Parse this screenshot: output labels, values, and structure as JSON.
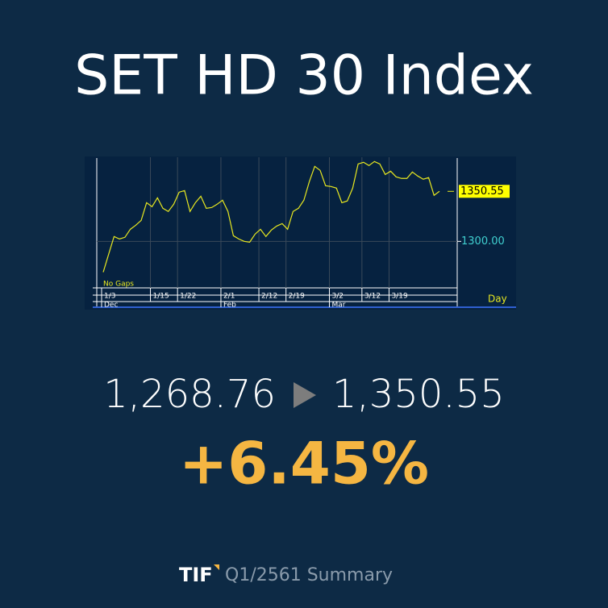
{
  "chart_data": {
    "type": "line",
    "title": "SET HD 30 Index",
    "categories": [
      "1/3",
      null,
      null,
      null,
      null,
      null,
      null,
      null,
      null,
      "1/15",
      null,
      null,
      null,
      null,
      "1/22",
      null,
      null,
      null,
      null,
      null,
      null,
      null,
      "2/1",
      null,
      null,
      null,
      null,
      null,
      null,
      "2/12",
      null,
      null,
      null,
      null,
      "2/19",
      null,
      null,
      null,
      null,
      null,
      null,
      null,
      "3/2",
      null,
      null,
      null,
      null,
      null,
      "3/12",
      null,
      null,
      null,
      null,
      "3/19",
      null,
      null,
      null,
      null,
      null,
      null,
      null,
      null,
      null
    ],
    "months": [
      "Dec",
      null,
      null,
      null,
      null,
      null,
      null,
      null,
      null,
      null,
      null,
      null,
      null,
      null,
      null,
      null,
      null,
      null,
      null,
      null,
      null,
      null,
      "Feb",
      null,
      null,
      null,
      null,
      null,
      null,
      null,
      null,
      null,
      null,
      null,
      null,
      null,
      null,
      null,
      null,
      null,
      null,
      null,
      "Mar",
      null,
      null,
      null,
      null,
      null,
      null,
      null,
      null,
      null,
      null,
      null,
      null,
      null,
      null,
      null,
      null,
      null,
      null,
      null,
      null
    ],
    "series": [
      {
        "color": "#e8e820",
        "values": [
          1268.8,
          1287.0,
          1304.9,
          1302.4,
          1304.1,
          1312.2,
          1316.3,
          1321.2,
          1339.1,
          1335.0,
          1344.0,
          1333.4,
          1330.2,
          1337.5,
          1349.7,
          1351.3,
          1330.2,
          1339.1,
          1345.6,
          1333.4,
          1334.2,
          1337.5,
          1341.6,
          1330.2,
          1305.7,
          1302.4,
          1300.0,
          1299.2,
          1307.3,
          1312.2,
          1304.9,
          1311.4,
          1315.5,
          1317.9,
          1312.2,
          1330.2,
          1333.4,
          1341.6,
          1360.3,
          1375.8,
          1371.7,
          1356.2,
          1355.4,
          1353.8,
          1339.1,
          1340.8,
          1353.8,
          1378.2,
          1379.9,
          1376.6,
          1380.7,
          1378.2,
          1367.6,
          1370.9,
          1365.2,
          1363.6,
          1363.6,
          1370.1,
          1366.0,
          1362.8,
          1364.4,
          1346.5,
          1350.55
        ],
        "value_labels": [
          null,
          null,
          null,
          null,
          null,
          null,
          null,
          null,
          null,
          null,
          null,
          null,
          null,
          null,
          null,
          null,
          null,
          null,
          null,
          null,
          null,
          null,
          null,
          null,
          null,
          null,
          null,
          null,
          null,
          null,
          null,
          null,
          null,
          null,
          null,
          null,
          null,
          null,
          null,
          null,
          null,
          null,
          null,
          null,
          null,
          null,
          null,
          null,
          null,
          null,
          null,
          null,
          null,
          null,
          null,
          null,
          null,
          null,
          null,
          null,
          null,
          null,
          "1350.55"
        ]
      }
    ],
    "ylim": [
      1253,
      1385
    ],
    "yticks": [
      {
        "value": 1300,
        "label": "1300.00"
      }
    ],
    "grid": true,
    "gap_note": "No  Gaps",
    "x_unit": "Day"
  },
  "summary": {
    "start": "1,268.76",
    "end": "1,350.55",
    "change": "+6.45%"
  },
  "footer": {
    "brand": "TIF",
    "text": "Q1/2561 Summary"
  }
}
